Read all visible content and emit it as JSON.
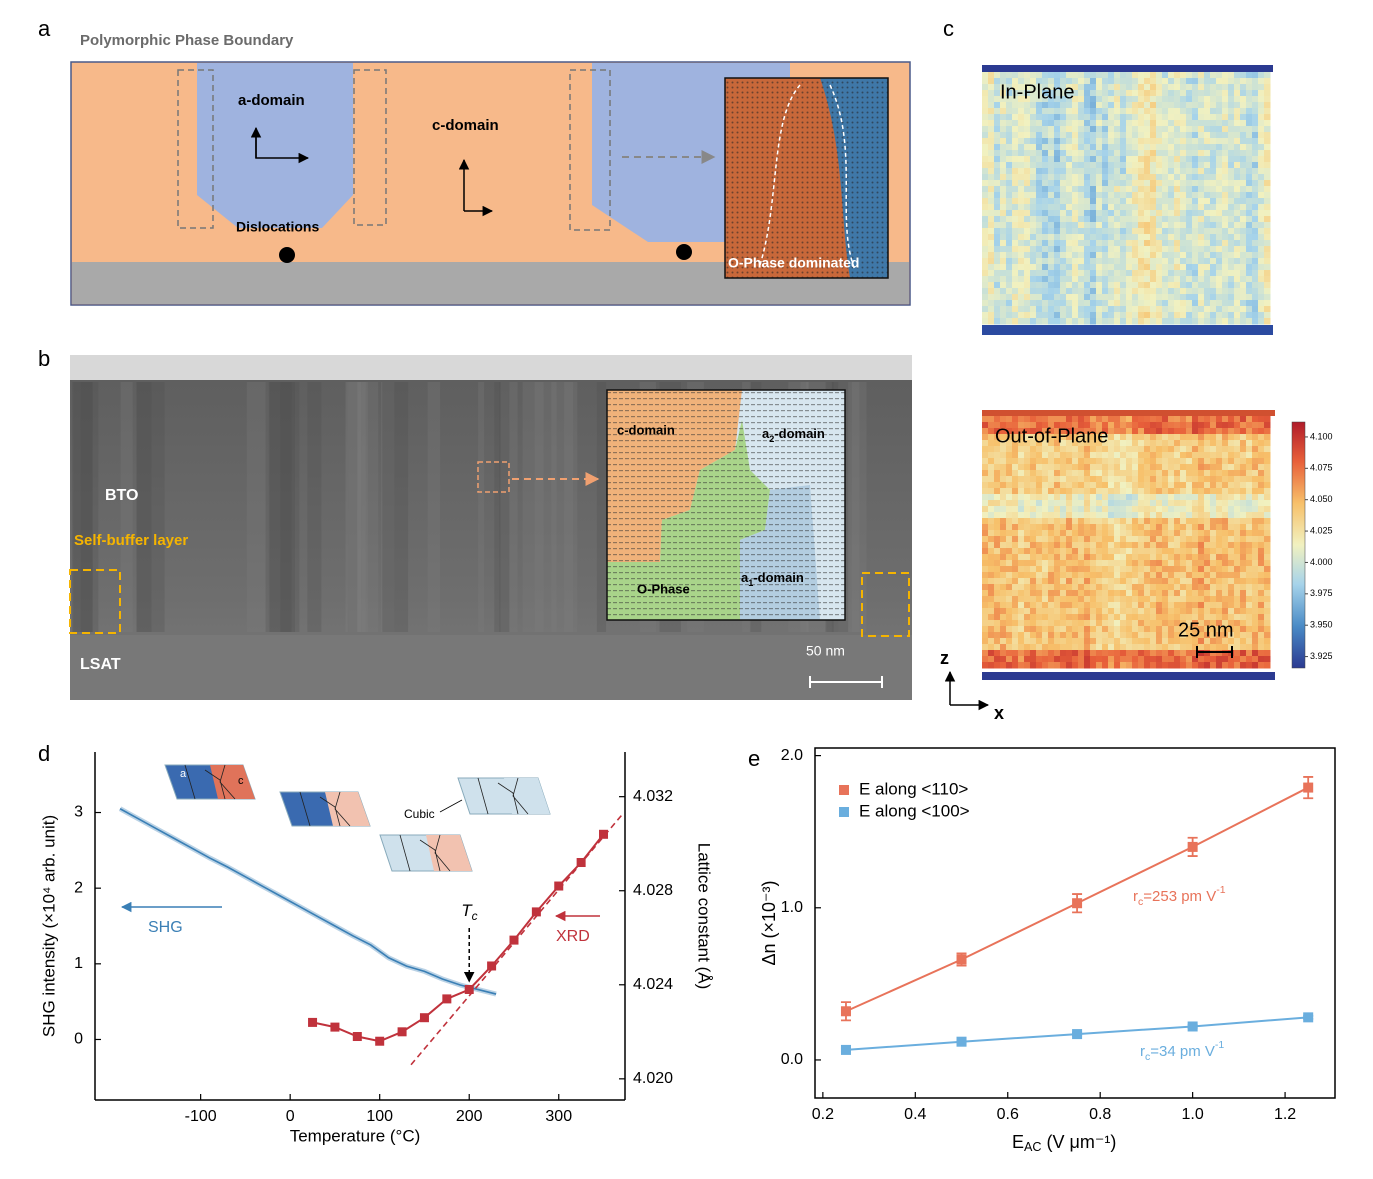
{
  "panels": {
    "a": {
      "label": "a",
      "title": "Polymorphic Phase Boundary",
      "a_domain": "a-domain",
      "c_domain": "c-domain",
      "dislocations": "Dislocations",
      "o_phase": "O-Phase dominated"
    },
    "b": {
      "label": "b",
      "bto": "BTO",
      "buffer": "Self-buffer layer",
      "lsat": "LSAT",
      "scale": "50 nm",
      "inset": {
        "c_domain": "c-domain",
        "a2": "a",
        "a2_sub": "2",
        "a2_rest": "-domain",
        "o_phase": "O-Phase",
        "a1": "a",
        "a1_sub": "1",
        "a1_rest": "-domain"
      }
    },
    "c": {
      "label": "c",
      "in_plane": "In-Plane",
      "out_of_plane": "Out-of-Plane",
      "scale": "25 nm",
      "axis_z": "z",
      "axis_x": "x",
      "colorbar": {
        "lim": [
          3.9159,
          4.1119
        ],
        "ticks": [
          {
            "value": 4.1,
            "label": "4.100"
          },
          4.075,
          {
            "value": 4.05,
            "label": "4.050"
          },
          4.025,
          {
            "value": 4.0,
            "label": "4.000"
          },
          3.975,
          {
            "value": 3.95,
            "label": "3.950"
          },
          3.925
        ]
      }
    }
  },
  "chart_data": [
    {
      "type": "line",
      "label": "d",
      "xlabel": "Temperature (°C)",
      "ylabel": "SHG intensity (×10⁴ arb. unit)",
      "y2label": "Lattice constant (Å)",
      "xlim": [
        -218,
        374
      ],
      "xticks": [
        -100,
        0,
        100,
        200,
        300
      ],
      "ylim": [
        -0.8,
        3.8
      ],
      "yticks": [
        0,
        1,
        2,
        3
      ],
      "y2lim": [
        4.0191,
        4.0339
      ],
      "y2ticks": [
        {
          "value": 4.02,
          "label": "4.020"
        },
        4.024,
        4.028,
        4.032
      ],
      "series": [
        {
          "name": "SHG",
          "color": "#3a7fb5",
          "x": [
            -190,
            -170,
            -150,
            -130,
            -110,
            -90,
            -70,
            -50,
            -30,
            -10,
            10,
            30,
            50,
            70,
            90,
            110,
            130,
            150,
            170,
            190,
            210,
            230
          ],
          "values": [
            3.05,
            2.92,
            2.79,
            2.66,
            2.53,
            2.4,
            2.28,
            2.15,
            2.02,
            1.89,
            1.76,
            1.63,
            1.5,
            1.37,
            1.25,
            1.08,
            0.97,
            0.9,
            0.8,
            0.72,
            0.66,
            0.6
          ]
        },
        {
          "name": "XRD",
          "color": "#c0323c",
          "axis": "y2",
          "marker": "square",
          "x": [
            25,
            50,
            75,
            100,
            125,
            150,
            175,
            200,
            225,
            250,
            275,
            300,
            325,
            350
          ],
          "values": [
            4.0224,
            4.0222,
            4.0218,
            4.0216,
            4.022,
            4.0226,
            4.0234,
            4.0238,
            4.0248,
            4.0259,
            4.0271,
            4.0282,
            4.0292,
            4.0304
          ]
        },
        {
          "color": "#c0323c",
          "axis": "y2",
          "style": "dashed",
          "x": [
            135,
            370
          ],
          "values": [
            4.0206,
            4.0312
          ]
        }
      ],
      "annotations": {
        "tc": "T",
        "tc_sub": "c",
        "tc_x": 200,
        "tc_value": 4.0238,
        "tile_a": "a",
        "tile_c": "c",
        "cubic": "Cubic"
      }
    },
    {
      "type": "scatter",
      "label": "e",
      "xlabel": "E",
      "xlabel_sub": "AC",
      "xlabel_rest": " (V μm⁻¹)",
      "ylabel": "Δn (×10⁻³)",
      "xlim": [
        0.183,
        1.308
      ],
      "xticks": [
        0.2,
        0.4,
        0.6,
        0.8,
        {
          "value": 1,
          "label": "1.0"
        },
        1.2
      ],
      "ylim": [
        -0.25,
        2.05
      ],
      "yticks": [
        {
          "value": 0,
          "label": "0.0"
        },
        {
          "value": 1,
          "label": "1.0"
        },
        {
          "value": 2,
          "label": "2.0"
        }
      ],
      "legend": "upper left",
      "series": [
        {
          "name": "E along <110>",
          "color": "#e8735a",
          "x": [
            0.25,
            0.5,
            0.75,
            1,
            1.25
          ],
          "values": [
            0.32,
            0.66,
            1.03,
            1.4,
            1.79
          ],
          "errors": [
            0.06,
            0.04,
            0.06,
            0.06,
            0.07
          ],
          "fit_label": [
            "r",
            "c",
            "=253 pm V",
            "-1"
          ]
        },
        {
          "name": "E along <100>",
          "color": "#6aaede",
          "x": [
            0.25,
            0.5,
            0.75,
            1,
            1.25
          ],
          "values": [
            0.066,
            0.12,
            0.17,
            0.22,
            0.28
          ],
          "errors": [
            0.01,
            0.01,
            0.01,
            0.01,
            0.01
          ],
          "fit_label": [
            "r",
            "c",
            "=34 pm V",
            "-1"
          ]
        }
      ]
    }
  ]
}
